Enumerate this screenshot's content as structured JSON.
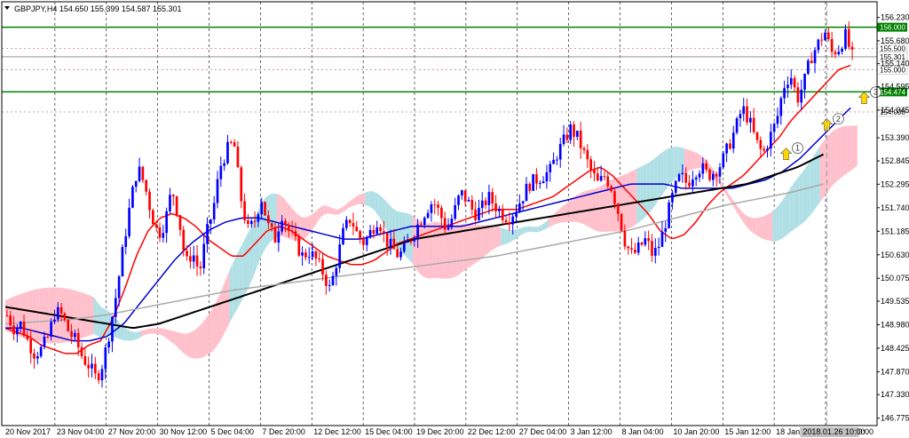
{
  "chart_data": {
    "type": "candlestick",
    "title": "GBPJPY,H4  154.650 155.399 154.587 155.301",
    "ylim": [
      146.6,
      156.6
    ],
    "y_ticks": [
      "156.230",
      "155.680",
      "155.140",
      "154.595",
      "154.045",
      "153.390",
      "152.845",
      "152.295",
      "151.740",
      "151.185",
      "150.630",
      "150.075",
      "149.535",
      "148.980",
      "148.425",
      "147.870",
      "147.330",
      "146.775"
    ],
    "x_ticks": [
      "20 Nov 2017",
      "23 Nov 04:00",
      "27 Nov 20:00",
      "30 Nov 12:00",
      "5 Dec 04:00",
      "7 Dec 20:00",
      "12 Dec 12:00",
      "15 Dec 04:00",
      "19 Dec 20:00",
      "22 Dec 12:00",
      "27 Dec 04:00",
      "3 Jan 12:00",
      "8 Jan 04:00",
      "10 Jan 20:00",
      "15 Jan 12:00",
      "18 Jan 04:00",
      "22 Jan 20:00"
    ],
    "cursor_label": "2018.01.26 10:00",
    "levels": [
      {
        "label": "156.000",
        "value": 156.0,
        "color": "#008000"
      },
      {
        "label": "155.500",
        "value": 155.5,
        "color": "#c08080"
      },
      {
        "label": "155.301",
        "value": 155.301,
        "color": "#808080"
      },
      {
        "label": "155.000",
        "value": 155.0,
        "color": "#c08080"
      },
      {
        "label": "154.474",
        "value": 154.474,
        "color": "#008000"
      },
      {
        "label": "154.000",
        "value": 154.0,
        "color": "#c08080"
      }
    ],
    "markers": [
      {
        "label": "1",
        "x_index": 230,
        "price": 152.98
      },
      {
        "label": "2",
        "x_index": 242,
        "price": 153.67
      },
      {
        "label": "3",
        "x_index": 253,
        "price": 154.3
      }
    ],
    "series": [
      {
        "role": "price",
        "values": [
          149.2,
          148.9,
          149.0,
          148.6,
          148.3,
          148.4,
          148.7,
          149.3,
          149.2,
          148.8,
          148.6,
          148.2,
          148.0,
          147.7,
          148.1,
          148.9,
          149.8,
          150.9,
          151.9,
          152.7,
          152.3,
          151.6,
          151.1,
          151.4,
          152.2,
          151.5,
          150.4,
          150.7,
          150.2,
          151.1,
          151.7,
          152.7,
          153.1,
          153.3,
          152.0,
          151.2,
          151.4,
          152.0,
          151.3,
          151.0,
          151.6,
          151.2,
          150.9,
          150.6,
          150.7,
          150.5,
          150.2,
          149.8,
          150.5,
          151.2,
          151.5,
          151.1,
          150.9,
          151.2,
          151.5,
          151.0,
          150.8,
          150.6,
          150.8,
          151.1,
          151.4,
          151.7,
          151.9,
          151.6,
          151.2,
          151.6,
          152.1,
          151.9,
          151.6,
          151.7,
          152.0,
          151.8,
          151.6,
          151.5,
          151.7,
          152.0,
          152.3,
          152.4,
          152.5,
          152.6,
          153.0,
          153.3,
          153.6,
          153.4,
          153.0,
          152.6,
          152.3,
          152.5,
          152.2,
          151.6,
          150.9,
          150.6,
          150.8,
          151.0,
          150.6,
          150.9,
          151.5,
          152.1,
          152.5,
          152.3,
          152.6,
          152.7,
          152.5,
          152.6,
          152.8,
          153.2,
          153.6,
          154.1,
          153.8,
          153.3,
          153.0,
          153.4,
          153.8,
          154.6,
          154.9,
          154.3,
          154.7,
          155.3,
          155.6,
          155.9,
          155.4,
          155.5,
          155.8,
          155.3
        ]
      },
      {
        "role": "ma-red",
        "values": [
          148.9,
          148.8,
          148.7,
          148.5,
          148.4,
          148.3,
          148.3,
          148.5,
          148.6,
          149.1,
          149.8,
          150.6,
          151.2,
          151.5,
          151.6,
          151.5,
          151.3,
          151.0,
          150.8,
          150.6,
          150.6,
          150.9,
          151.2,
          151.3,
          151.2,
          151.0,
          150.8,
          150.6,
          150.5,
          150.4,
          150.4,
          150.5,
          150.7,
          150.9,
          151.0,
          151.1,
          151.2,
          151.3,
          151.4,
          151.5,
          151.6,
          151.7,
          151.7,
          151.7,
          151.8,
          151.9,
          152.0,
          152.2,
          152.4,
          152.6,
          152.7,
          152.5,
          152.2,
          151.9,
          151.6,
          151.2,
          151.0,
          151.1,
          151.4,
          151.8,
          152.1,
          152.3,
          152.5,
          152.8,
          153.1,
          153.4,
          153.8,
          154.1,
          154.4,
          154.7,
          155.0,
          155.1
        ]
      },
      {
        "role": "ma-blue",
        "values": [
          148.9,
          148.9,
          148.8,
          148.7,
          148.6,
          148.6,
          148.7,
          149.0,
          149.5,
          150.0,
          150.5,
          150.9,
          151.2,
          151.4,
          151.5,
          151.5,
          151.4,
          151.3,
          151.2,
          151.1,
          151.0,
          151.0,
          151.1,
          151.2,
          151.3,
          151.3,
          151.3,
          151.3,
          151.4,
          151.5,
          151.6,
          151.7,
          151.8,
          151.9,
          152.0,
          152.1,
          152.2,
          152.3,
          152.3,
          152.3,
          152.2,
          152.2,
          152.2,
          152.2,
          152.3,
          152.4,
          152.6,
          152.9,
          153.3,
          153.7,
          154.1
        ]
      },
      {
        "role": "ma-black",
        "values": [
          149.4,
          149.3,
          149.2,
          149.1,
          149.0,
          148.9,
          149.0,
          149.2,
          149.4,
          149.6,
          149.8,
          150.0,
          150.2,
          150.4,
          150.6,
          150.8,
          151.0,
          151.1,
          151.2,
          151.3,
          151.4,
          151.5,
          151.6,
          151.7,
          151.8,
          151.9,
          152.0,
          152.1,
          152.2,
          152.3,
          152.5,
          152.7,
          153.0
        ]
      },
      {
        "role": "ma-gray",
        "values": [
          149.0,
          149.05,
          149.1,
          149.2,
          149.35,
          149.5,
          149.65,
          149.8,
          149.9,
          150.0,
          150.1,
          150.2,
          150.3,
          150.4,
          150.5,
          150.6,
          150.75,
          150.9,
          151.05,
          151.2,
          151.4,
          151.6,
          151.8,
          151.95,
          152.1,
          152.3
        ]
      }
    ]
  }
}
